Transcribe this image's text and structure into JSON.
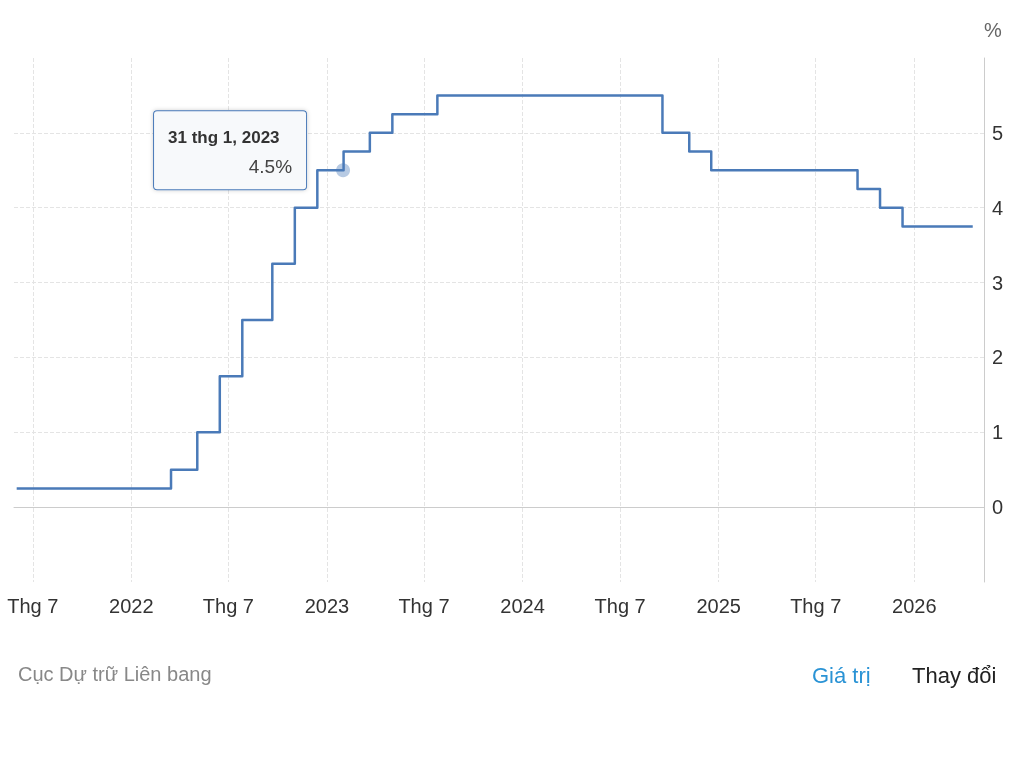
{
  "chart_data": {
    "type": "step",
    "ylabel": "%",
    "x": [
      "2021-06-01",
      "2022-03-16",
      "2022-05-04",
      "2022-06-15",
      "2022-07-27",
      "2022-09-21",
      "2022-11-02",
      "2022-12-14",
      "2023-02-01",
      "2023-03-22",
      "2023-05-03",
      "2023-07-26",
      "2024-09-18",
      "2024-11-07",
      "2024-12-18",
      "2025-09-17",
      "2025-10-29",
      "2025-12-10",
      "2026-04-20"
    ],
    "series": [
      {
        "color": "#4a7ab8",
        "values": [
          0.25,
          0.5,
          1,
          1.75,
          2.5,
          3.25,
          4,
          4.5,
          4.75,
          5,
          5.25,
          5.5,
          5,
          4.75,
          4.5,
          4.25,
          4,
          3.75,
          3.75
        ]
      }
    ],
    "xlim": [
      "2021-05-27",
      "2026-05-11"
    ],
    "xticks": [
      {
        "value": "2021-07",
        "label": "Thg 7"
      },
      {
        "value": "2022",
        "label": "2022"
      },
      {
        "value": "2022-07",
        "label": "Thg 7"
      },
      {
        "value": "2023",
        "label": "2023"
      },
      {
        "value": "2023-07",
        "label": "Thg 7"
      },
      {
        "value": "2024",
        "label": "2024"
      },
      {
        "value": "2024-07",
        "label": "Thg 7"
      },
      {
        "value": "2025",
        "label": "2025"
      },
      {
        "value": "2025-07",
        "label": "Thg 7"
      },
      {
        "value": "2026",
        "label": "2026"
      }
    ],
    "ylim": [
      -1,
      6
    ],
    "yticks": [
      0,
      1,
      2,
      3,
      4,
      5
    ],
    "grid": true,
    "marker": "none",
    "line_style": "solid",
    "annotations": [
      {
        "text": "31 thg 1, 2023\n4.5%",
        "x": "2023-01-31",
        "y": 4.5
      },
      "Cục Dự trữ Liên bang",
      "Giá trị",
      "Thay đổi"
    ]
  }
}
